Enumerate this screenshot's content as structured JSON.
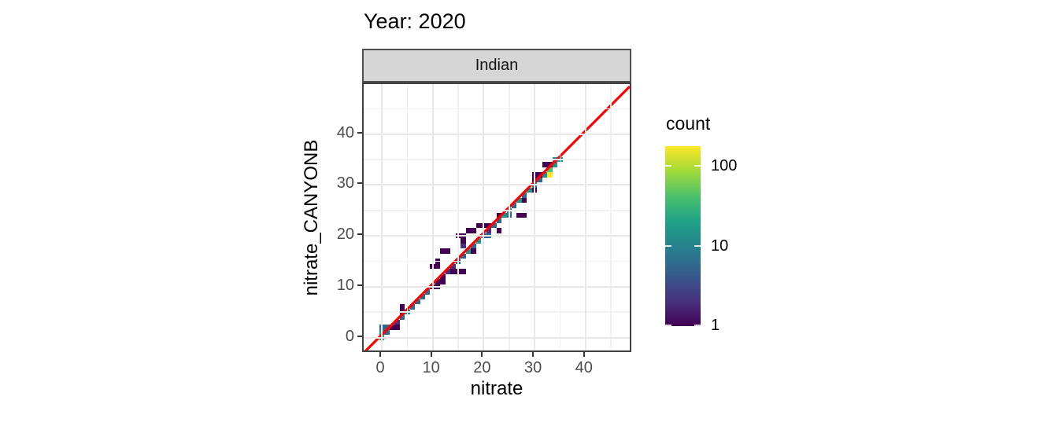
{
  "title": "Year: 2020",
  "facet": {
    "label": "Indian"
  },
  "axes": {
    "x": {
      "title": "nitrate",
      "ticks": [
        0,
        10,
        20,
        30,
        40
      ]
    },
    "y": {
      "title": "nitrate_CANYONB",
      "ticks": [
        0,
        10,
        20,
        30,
        40
      ]
    }
  },
  "legend": {
    "title": "count",
    "tick_values": [
      100,
      10,
      1
    ],
    "scale": "log10",
    "colormap": "viridis"
  },
  "colors": {
    "reference_line": "#FF0000",
    "strip_fill": "#d6d6d6",
    "panel_border": "#404040",
    "gridline": "#e8e8e8",
    "tick_text": "#4d4d4d",
    "viridis_top": "#fde725",
    "viridis_bottom": "#440154"
  },
  "chart_data": {
    "type": "heatmap",
    "subtype": "geom_bin2d scatter of binned counts along 1:1 line",
    "title": "Year: 2020",
    "facet": "Indian",
    "xlabel": "nitrate",
    "ylabel": "nitrate_CANYONB",
    "x_range": [
      -3.5,
      49
    ],
    "y_range": [
      -3.5,
      49
    ],
    "x_ticks": [
      0,
      10,
      20,
      30,
      40
    ],
    "y_ticks": [
      0,
      10,
      20,
      30,
      40
    ],
    "grid": "on",
    "bin_size": 1,
    "reference_line": {
      "type": "y=x",
      "color": "#FF0000"
    },
    "legend": {
      "title": "count",
      "scale": "log10",
      "tick_values": [
        1,
        10,
        100
      ],
      "position": "right",
      "colormap": "viridis"
    },
    "palette": {
      "d": {
        "color": "#440154",
        "count": 1
      },
      "bp": {
        "color": "#46327e",
        "count": 3
      },
      "b": {
        "color": "#31688e",
        "count": 6
      },
      "t": {
        "color": "#21918c",
        "count": 12
      },
      "g2": {
        "color": "#27ad81",
        "count": 25
      },
      "g": {
        "color": "#4ac16d",
        "count": 45
      },
      "y": {
        "color": "#fde725",
        "count": 150
      }
    },
    "bins": [
      [
        0,
        0,
        "g2"
      ],
      [
        0,
        1,
        "t"
      ],
      [
        0,
        2,
        "b"
      ],
      [
        1,
        1,
        "b"
      ],
      [
        1,
        2,
        "b"
      ],
      [
        2,
        2,
        "d"
      ],
      [
        3,
        2,
        "d"
      ],
      [
        3,
        3,
        "bp"
      ],
      [
        4,
        4,
        "b"
      ],
      [
        4,
        5,
        "d"
      ],
      [
        4,
        6,
        "d"
      ],
      [
        5,
        5,
        "t"
      ],
      [
        6,
        6,
        "b"
      ],
      [
        7,
        7,
        "b"
      ],
      [
        8,
        8,
        "b"
      ],
      [
        9,
        9,
        "b"
      ],
      [
        10,
        10,
        "d"
      ],
      [
        11,
        10,
        "d"
      ],
      [
        11,
        11,
        "d"
      ],
      [
        12,
        11,
        "d"
      ],
      [
        12,
        12,
        "d"
      ],
      [
        13,
        13,
        "bp"
      ],
      [
        14,
        13,
        "d"
      ],
      [
        14,
        14,
        "bp"
      ],
      [
        15,
        13,
        "d"
      ],
      [
        16,
        13,
        "d"
      ],
      [
        15,
        15,
        "b"
      ],
      [
        16,
        16,
        "b"
      ],
      [
        10,
        14,
        "d"
      ],
      [
        11,
        14,
        "d"
      ],
      [
        11,
        15,
        "d"
      ],
      [
        12,
        17,
        "d"
      ],
      [
        13,
        17,
        "d"
      ],
      [
        15,
        20,
        "d"
      ],
      [
        16,
        18,
        "bp"
      ],
      [
        16,
        19,
        "d"
      ],
      [
        16,
        20,
        "d"
      ],
      [
        17,
        21,
        "d"
      ],
      [
        18,
        21,
        "d"
      ],
      [
        17,
        17,
        "t"
      ],
      [
        18,
        17,
        "d"
      ],
      [
        18,
        18,
        "b"
      ],
      [
        19,
        19,
        "t"
      ],
      [
        20,
        20,
        "b"
      ],
      [
        21,
        20,
        "b"
      ],
      [
        21,
        21,
        "bp"
      ],
      [
        19,
        22,
        "d"
      ],
      [
        20,
        22,
        "d"
      ],
      [
        21,
        22,
        "d"
      ],
      [
        22,
        22,
        "b"
      ],
      [
        23,
        21,
        "d"
      ],
      [
        23,
        23,
        "b"
      ],
      [
        23,
        24,
        "d"
      ],
      [
        24,
        24,
        "t"
      ],
      [
        25,
        24,
        "b"
      ],
      [
        25,
        25,
        "t"
      ],
      [
        27,
        24,
        "d"
      ],
      [
        28,
        24,
        "d"
      ],
      [
        26,
        26,
        "b"
      ],
      [
        27,
        27,
        "t"
      ],
      [
        28,
        27,
        "d"
      ],
      [
        28,
        28,
        "b"
      ],
      [
        29,
        29,
        "t"
      ],
      [
        30,
        29,
        "d"
      ],
      [
        30,
        30,
        "b"
      ],
      [
        30,
        31,
        "d"
      ],
      [
        31,
        31,
        "b"
      ],
      [
        30,
        32,
        "d"
      ],
      [
        31,
        32,
        "d"
      ],
      [
        32,
        32,
        "t"
      ],
      [
        32,
        34,
        "d"
      ],
      [
        33,
        32,
        "y"
      ],
      [
        33,
        33,
        "g"
      ],
      [
        33,
        34,
        "d"
      ],
      [
        34,
        34,
        "t"
      ],
      [
        34,
        35,
        "t"
      ],
      [
        35,
        35,
        "t"
      ]
    ]
  }
}
